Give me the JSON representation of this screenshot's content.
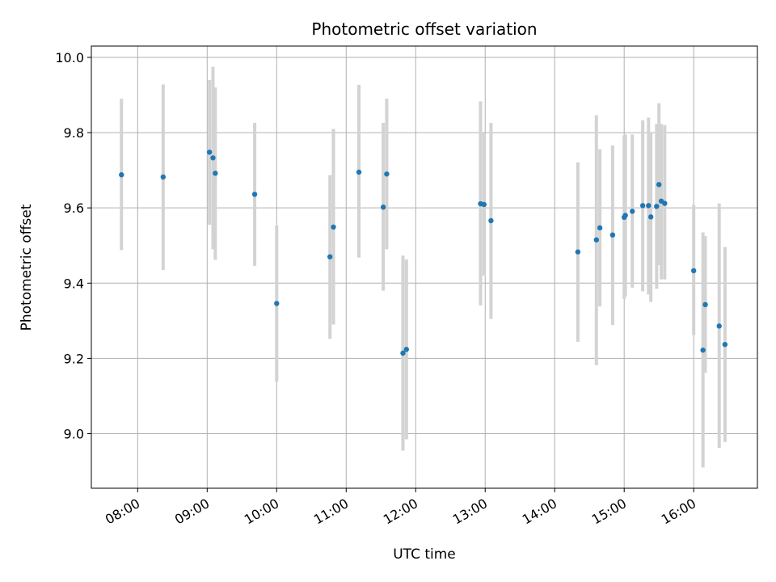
{
  "chart_data": {
    "type": "scatter",
    "title": "Photometric offset variation",
    "xlabel": "UTC time",
    "ylabel": "Photometric offset",
    "x_unit": "UTC time of day (HH:MM)",
    "xlim": [
      "07:20",
      "16:55"
    ],
    "ylim": [
      8.855,
      10.03
    ],
    "x_ticks": [
      "08:00",
      "09:00",
      "10:00",
      "11:00",
      "12:00",
      "13:00",
      "14:00",
      "15:00",
      "16:00"
    ],
    "y_ticks": [
      9.0,
      9.2,
      9.4,
      9.6,
      9.8,
      10.0
    ],
    "y_tick_labels": [
      "9.0",
      "9.2",
      "9.4",
      "9.6",
      "9.8",
      "10.0"
    ],
    "grid": true,
    "legend": "none",
    "colors": {
      "marker": "#1f77b4",
      "errorbar": "#d3d3d3",
      "grid": "#b0b0b0"
    },
    "points": [
      {
        "x": "07:46",
        "y": 9.688,
        "lo": 9.488,
        "hi": 9.89
      },
      {
        "x": "08:22",
        "y": 9.682,
        "lo": 9.435,
        "hi": 9.928
      },
      {
        "x": "09:02",
        "y": 9.748,
        "lo": 9.555,
        "hi": 9.94
      },
      {
        "x": "09:05",
        "y": 9.733,
        "lo": 9.49,
        "hi": 9.975
      },
      {
        "x": "09:07",
        "y": 9.692,
        "lo": 9.462,
        "hi": 9.92
      },
      {
        "x": "09:41",
        "y": 9.636,
        "lo": 9.446,
        "hi": 9.826
      },
      {
        "x": "10:00",
        "y": 9.346,
        "lo": 9.138,
        "hi": 9.553
      },
      {
        "x": "10:46",
        "y": 9.47,
        "lo": 9.252,
        "hi": 9.687
      },
      {
        "x": "10:49",
        "y": 9.549,
        "lo": 9.29,
        "hi": 9.81
      },
      {
        "x": "11:11",
        "y": 9.695,
        "lo": 9.468,
        "hi": 9.927
      },
      {
        "x": "11:32",
        "y": 9.602,
        "lo": 9.38,
        "hi": 9.826
      },
      {
        "x": "11:35",
        "y": 9.69,
        "lo": 9.49,
        "hi": 9.89
      },
      {
        "x": "11:49",
        "y": 9.214,
        "lo": 8.955,
        "hi": 9.473
      },
      {
        "x": "11:52",
        "y": 9.224,
        "lo": 8.985,
        "hi": 9.463
      },
      {
        "x": "12:56",
        "y": 9.611,
        "lo": 9.341,
        "hi": 9.883
      },
      {
        "x": "12:59",
        "y": 9.609,
        "lo": 9.42,
        "hi": 9.798
      },
      {
        "x": "13:05",
        "y": 9.566,
        "lo": 9.305,
        "hi": 9.826
      },
      {
        "x": "14:20",
        "y": 9.483,
        "lo": 9.244,
        "hi": 9.721
      },
      {
        "x": "14:36",
        "y": 9.515,
        "lo": 9.182,
        "hi": 9.846
      },
      {
        "x": "14:39",
        "y": 9.547,
        "lo": 9.338,
        "hi": 9.756
      },
      {
        "x": "14:50",
        "y": 9.528,
        "lo": 9.289,
        "hi": 9.766
      },
      {
        "x": "15:00",
        "y": 9.575,
        "lo": 9.358,
        "hi": 9.793
      },
      {
        "x": "15:01",
        "y": 9.58,
        "lo": 9.365,
        "hi": 9.795
      },
      {
        "x": "15:07",
        "y": 9.591,
        "lo": 9.388,
        "hi": 9.795
      },
      {
        "x": "15:16",
        "y": 9.606,
        "lo": 9.378,
        "hi": 9.833
      },
      {
        "x": "15:21",
        "y": 9.606,
        "lo": 9.37,
        "hi": 9.84
      },
      {
        "x": "15:23",
        "y": 9.576,
        "lo": 9.35,
        "hi": 9.8
      },
      {
        "x": "15:28",
        "y": 9.604,
        "lo": 9.385,
        "hi": 9.823
      },
      {
        "x": "15:30",
        "y": 9.662,
        "lo": 9.448,
        "hi": 9.878
      },
      {
        "x": "15:32",
        "y": 9.618,
        "lo": 9.41,
        "hi": 9.823
      },
      {
        "x": "15:35",
        "y": 9.612,
        "lo": 9.41,
        "hi": 9.82
      },
      {
        "x": "16:00",
        "y": 9.433,
        "lo": 9.262,
        "hi": 9.608
      },
      {
        "x": "16:08",
        "y": 9.222,
        "lo": 8.91,
        "hi": 9.535
      },
      {
        "x": "16:10",
        "y": 9.343,
        "lo": 9.162,
        "hi": 9.525
      },
      {
        "x": "16:22",
        "y": 9.286,
        "lo": 8.962,
        "hi": 9.612
      },
      {
        "x": "16:27",
        "y": 9.237,
        "lo": 8.978,
        "hi": 9.496
      }
    ]
  }
}
